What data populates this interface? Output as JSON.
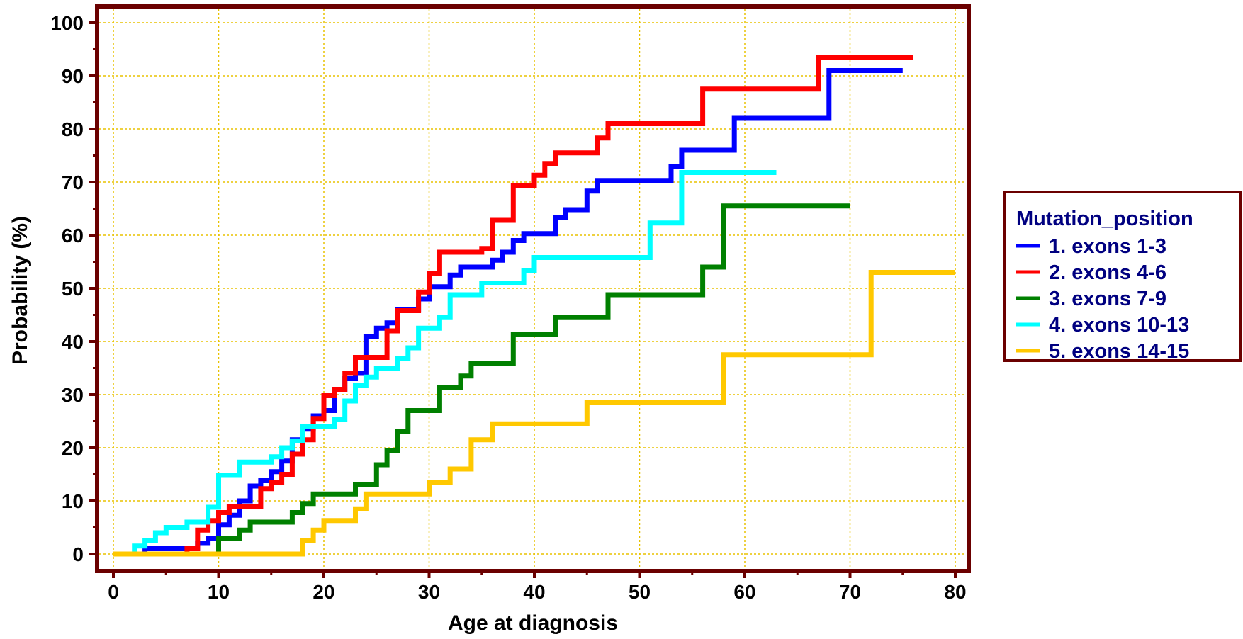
{
  "chart_data": {
    "type": "line",
    "step": true,
    "xlabel": "Age at diagnosis",
    "ylabel": "Probability (%)",
    "xlim": [
      0,
      80
    ],
    "ylim": [
      0,
      100
    ],
    "x_ticks": [
      "0",
      "10",
      "20",
      "30",
      "40",
      "50",
      "60",
      "70",
      "80"
    ],
    "y_ticks": [
      "0",
      "10",
      "20",
      "30",
      "40",
      "50",
      "60",
      "70",
      "80",
      "90",
      "100"
    ],
    "grid": true,
    "legend_position": "right",
    "legend_title": "Mutation_position",
    "colors": {
      "frame": "#6b0000",
      "grid": "#e8c200",
      "legend_text": "#000080"
    },
    "series": [
      {
        "name": "1. exons 1-3",
        "color": "#0000ff",
        "points": [
          [
            0,
            0
          ],
          [
            3,
            0
          ],
          [
            3,
            1
          ],
          [
            8,
            1
          ],
          [
            8,
            2
          ],
          [
            9,
            2
          ],
          [
            9,
            3
          ],
          [
            10,
            3
          ],
          [
            10,
            5.5
          ],
          [
            11,
            5.5
          ],
          [
            11,
            7.3
          ],
          [
            12,
            7.3
          ],
          [
            12,
            10
          ],
          [
            13,
            10
          ],
          [
            13,
            12.8
          ],
          [
            14,
            12.8
          ],
          [
            14,
            13.8
          ],
          [
            15,
            13.8
          ],
          [
            15,
            15.5
          ],
          [
            16,
            15.5
          ],
          [
            16,
            17.5
          ],
          [
            17,
            17.5
          ],
          [
            17,
            21.5
          ],
          [
            18,
            21.5
          ],
          [
            18,
            23.5
          ],
          [
            19,
            23.5
          ],
          [
            19,
            26
          ],
          [
            20,
            26
          ],
          [
            20,
            27
          ],
          [
            21,
            27
          ],
          [
            21,
            31
          ],
          [
            22,
            31
          ],
          [
            22,
            33
          ],
          [
            23,
            33
          ],
          [
            23,
            34
          ],
          [
            24,
            34
          ],
          [
            24,
            41
          ],
          [
            25,
            41
          ],
          [
            25,
            42.5
          ],
          [
            26,
            42.5
          ],
          [
            26,
            43.5
          ],
          [
            27,
            43.5
          ],
          [
            27,
            46
          ],
          [
            29,
            46
          ],
          [
            29,
            48
          ],
          [
            30,
            48
          ],
          [
            30,
            50.3
          ],
          [
            32,
            50.3
          ],
          [
            32,
            52.5
          ],
          [
            33,
            52.5
          ],
          [
            33,
            54
          ],
          [
            36,
            54
          ],
          [
            36,
            55.3
          ],
          [
            37,
            55.3
          ],
          [
            37,
            56.8
          ],
          [
            38,
            56.8
          ],
          [
            38,
            59
          ],
          [
            39,
            59
          ],
          [
            39,
            60.3
          ],
          [
            42,
            60.3
          ],
          [
            42,
            63.3
          ],
          [
            43,
            63.3
          ],
          [
            43,
            64.8
          ],
          [
            45,
            64.8
          ],
          [
            45,
            68.3
          ],
          [
            46,
            68.3
          ],
          [
            46,
            70.3
          ],
          [
            53,
            70.3
          ],
          [
            53,
            73
          ],
          [
            54,
            73
          ],
          [
            54,
            76
          ],
          [
            59,
            76
          ],
          [
            59,
            82
          ],
          [
            68,
            82
          ],
          [
            68,
            91
          ],
          [
            75,
            91
          ]
        ]
      },
      {
        "name": "2. exons 4-6",
        "color": "#ff0000",
        "points": [
          [
            0,
            0
          ],
          [
            7,
            0
          ],
          [
            7,
            1
          ],
          [
            8,
            1
          ],
          [
            8,
            4.5
          ],
          [
            9,
            4.5
          ],
          [
            9,
            6.3
          ],
          [
            10,
            6.3
          ],
          [
            10,
            7.8
          ],
          [
            11,
            7.8
          ],
          [
            11,
            9
          ],
          [
            14,
            9
          ],
          [
            14,
            12.3
          ],
          [
            15,
            12.3
          ],
          [
            15,
            13.5
          ],
          [
            16,
            13.5
          ],
          [
            16,
            15
          ],
          [
            17,
            15
          ],
          [
            17,
            18.8
          ],
          [
            18,
            18.8
          ],
          [
            18,
            21.5
          ],
          [
            19,
            21.5
          ],
          [
            19,
            25.5
          ],
          [
            20,
            25.5
          ],
          [
            20,
            29.8
          ],
          [
            21,
            29.8
          ],
          [
            21,
            31
          ],
          [
            22,
            31
          ],
          [
            22,
            34
          ],
          [
            23,
            34
          ],
          [
            23,
            37
          ],
          [
            26,
            37
          ],
          [
            26,
            42
          ],
          [
            27,
            42
          ],
          [
            27,
            45.8
          ],
          [
            29,
            45.8
          ],
          [
            29,
            49.3
          ],
          [
            30,
            49.3
          ],
          [
            30,
            52.8
          ],
          [
            31,
            52.8
          ],
          [
            31,
            56.8
          ],
          [
            35,
            56.8
          ],
          [
            35,
            57.5
          ],
          [
            36,
            57.5
          ],
          [
            36,
            62.8
          ],
          [
            38,
            62.8
          ],
          [
            38,
            69.3
          ],
          [
            40,
            69.3
          ],
          [
            40,
            71.3
          ],
          [
            41,
            71.3
          ],
          [
            41,
            73.5
          ],
          [
            42,
            73.5
          ],
          [
            42,
            75.5
          ],
          [
            46,
            75.5
          ],
          [
            46,
            78.3
          ],
          [
            47,
            78.3
          ],
          [
            47,
            81
          ],
          [
            56,
            81
          ],
          [
            56,
            87.5
          ],
          [
            67,
            87.5
          ],
          [
            67,
            93.5
          ],
          [
            76,
            93.5
          ]
        ]
      },
      {
        "name": "3. exons 7-9",
        "color": "#008000",
        "points": [
          [
            10,
            0
          ],
          [
            10,
            3
          ],
          [
            12,
            3
          ],
          [
            12,
            4.5
          ],
          [
            13,
            4.5
          ],
          [
            13,
            6
          ],
          [
            17,
            6
          ],
          [
            17,
            7.8
          ],
          [
            18,
            7.8
          ],
          [
            18,
            9.5
          ],
          [
            19,
            9.5
          ],
          [
            19,
            11.3
          ],
          [
            23,
            11.3
          ],
          [
            23,
            13
          ],
          [
            25,
            13
          ],
          [
            25,
            16.8
          ],
          [
            26,
            16.8
          ],
          [
            26,
            19.5
          ],
          [
            27,
            19.5
          ],
          [
            27,
            23
          ],
          [
            28,
            23
          ],
          [
            28,
            27
          ],
          [
            31,
            27
          ],
          [
            31,
            31.3
          ],
          [
            33,
            31.3
          ],
          [
            33,
            33.5
          ],
          [
            34,
            33.5
          ],
          [
            34,
            35.8
          ],
          [
            38,
            35.8
          ],
          [
            38,
            41.3
          ],
          [
            42,
            41.3
          ],
          [
            42,
            44.5
          ],
          [
            47,
            44.5
          ],
          [
            47,
            48.8
          ],
          [
            56,
            48.8
          ],
          [
            56,
            54
          ],
          [
            58,
            54
          ],
          [
            58,
            65.5
          ],
          [
            70,
            65.5
          ]
        ]
      },
      {
        "name": "4. exons 10-13",
        "color": "#00ffff",
        "points": [
          [
            2,
            0
          ],
          [
            2,
            1.5
          ],
          [
            3,
            1.5
          ],
          [
            3,
            2.5
          ],
          [
            4,
            2.5
          ],
          [
            4,
            4
          ],
          [
            5,
            4
          ],
          [
            5,
            5
          ],
          [
            7,
            5
          ],
          [
            7,
            6
          ],
          [
            9,
            6
          ],
          [
            9,
            8.8
          ],
          [
            10,
            8.8
          ],
          [
            10,
            14.8
          ],
          [
            12,
            14.8
          ],
          [
            12,
            17.3
          ],
          [
            15,
            17.3
          ],
          [
            15,
            18.3
          ],
          [
            16,
            18.3
          ],
          [
            16,
            20
          ],
          [
            17,
            20
          ],
          [
            17,
            21.3
          ],
          [
            18,
            21.3
          ],
          [
            18,
            24
          ],
          [
            21,
            24
          ],
          [
            21,
            25.3
          ],
          [
            22,
            25.3
          ],
          [
            22,
            28.8
          ],
          [
            23,
            28.8
          ],
          [
            23,
            31.8
          ],
          [
            24,
            31.8
          ],
          [
            24,
            33.3
          ],
          [
            25,
            33.3
          ],
          [
            25,
            35
          ],
          [
            27,
            35
          ],
          [
            27,
            36.8
          ],
          [
            28,
            36.8
          ],
          [
            28,
            38.8
          ],
          [
            29,
            38.8
          ],
          [
            29,
            42.5
          ],
          [
            31,
            42.5
          ],
          [
            31,
            44.5
          ],
          [
            32,
            44.5
          ],
          [
            32,
            48.8
          ],
          [
            35,
            48.8
          ],
          [
            35,
            51
          ],
          [
            39,
            51
          ],
          [
            39,
            53.3
          ],
          [
            40,
            53.3
          ],
          [
            40,
            55.8
          ],
          [
            51,
            55.8
          ],
          [
            51,
            62.3
          ],
          [
            54,
            62.3
          ],
          [
            54,
            71.8
          ],
          [
            63,
            71.8
          ]
        ]
      },
      {
        "name": "5. exons 14-15",
        "color": "#ffc800",
        "points": [
          [
            0,
            0
          ],
          [
            18,
            0
          ],
          [
            18,
            2.5
          ],
          [
            19,
            2.5
          ],
          [
            19,
            4.5
          ],
          [
            20,
            4.5
          ],
          [
            20,
            6.3
          ],
          [
            23,
            6.3
          ],
          [
            23,
            8.5
          ],
          [
            24,
            8.5
          ],
          [
            24,
            11.3
          ],
          [
            30,
            11.3
          ],
          [
            30,
            13.5
          ],
          [
            32,
            13.5
          ],
          [
            32,
            16
          ],
          [
            34,
            16
          ],
          [
            34,
            21.5
          ],
          [
            36,
            21.5
          ],
          [
            36,
            24.5
          ],
          [
            45,
            24.5
          ],
          [
            45,
            28.5
          ],
          [
            58,
            28.5
          ],
          [
            58,
            37.5
          ],
          [
            72,
            37.5
          ],
          [
            72,
            53
          ],
          [
            80,
            53
          ]
        ]
      }
    ]
  }
}
